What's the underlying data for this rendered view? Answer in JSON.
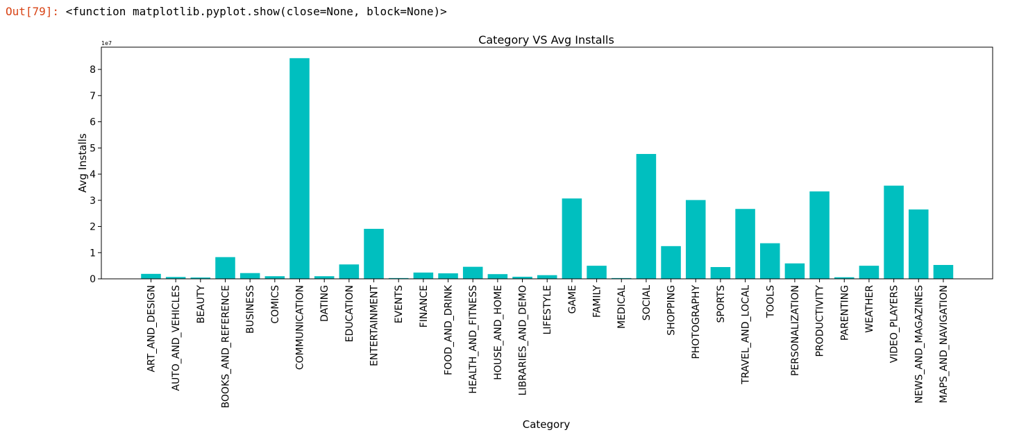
{
  "cell": {
    "prompt": "Out[79]:",
    "output": "<function matplotlib.pyplot.show(close=None, block=None)>"
  },
  "chart_data": {
    "type": "bar",
    "title": "Category VS Avg Installs",
    "xlabel": "Category",
    "ylabel": "Avg Installs",
    "y_scale_label": "1e7",
    "ylim": [
      0,
      8.85
    ],
    "yticks": [
      0,
      1,
      2,
      3,
      4,
      5,
      6,
      7,
      8
    ],
    "grid": false,
    "color": "#00bfbf",
    "categories": [
      "ART_AND_DESIGN",
      "AUTO_AND_VEHICLES",
      "BEAUTY",
      "BOOKS_AND_REFERENCE",
      "BUSINESS",
      "COMICS",
      "COMMUNICATION",
      "DATING",
      "EDUCATION",
      "ENTERTAINMENT",
      "EVENTS",
      "FINANCE",
      "FOOD_AND_DRINK",
      "HEALTH_AND_FITNESS",
      "HOUSE_AND_HOME",
      "LIBRARIES_AND_DEMO",
      "LIFESTYLE",
      "GAME",
      "FAMILY",
      "MEDICAL",
      "SOCIAL",
      "SHOPPING",
      "PHOTOGRAPHY",
      "SPORTS",
      "TRAVEL_AND_LOCAL",
      "TOOLS",
      "PERSONALIZATION",
      "PRODUCTIVITY",
      "PARENTING",
      "WEATHER",
      "VIDEO_PLAYERS",
      "NEWS_AND_MAGAZINES",
      "MAPS_AND_NAVIGATION"
    ],
    "values": [
      0.19,
      0.07,
      0.05,
      0.83,
      0.22,
      0.1,
      8.43,
      0.1,
      0.55,
      1.91,
      0.03,
      0.24,
      0.21,
      0.46,
      0.18,
      0.08,
      0.14,
      3.07,
      0.5,
      0.03,
      4.77,
      1.25,
      3.01,
      0.45,
      2.67,
      1.36,
      0.59,
      3.34,
      0.06,
      0.5,
      3.56,
      2.65,
      0.53
    ]
  }
}
